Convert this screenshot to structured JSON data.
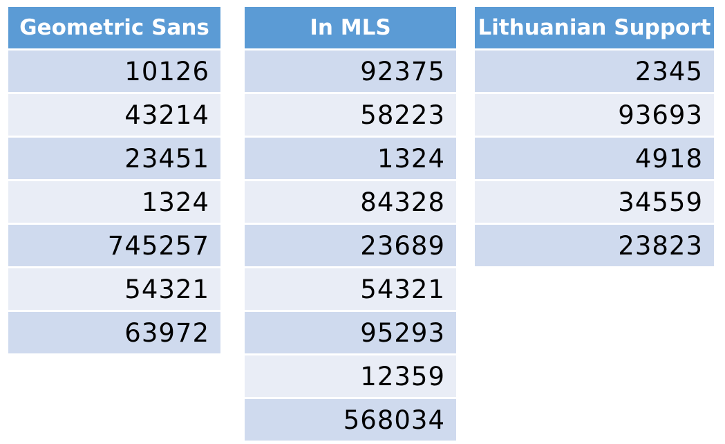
{
  "chart_data": {
    "type": "table",
    "tables": [
      {
        "header": "Geometric Sans",
        "values": [
          10126,
          43214,
          23451,
          1324,
          745257,
          54321,
          63972
        ]
      },
      {
        "header": "In MLS",
        "values": [
          92375,
          58223,
          1324,
          84328,
          23689,
          54321,
          95293,
          12359,
          568034
        ]
      },
      {
        "header": "Lithuanian Support",
        "values": [
          2345,
          93693,
          4918,
          34559,
          23823
        ]
      }
    ]
  },
  "colors": {
    "header_bg": "#5b9bd5",
    "header_text": "#ffffff",
    "row_odd": "#cfdaee",
    "row_even": "#e9edf6"
  }
}
